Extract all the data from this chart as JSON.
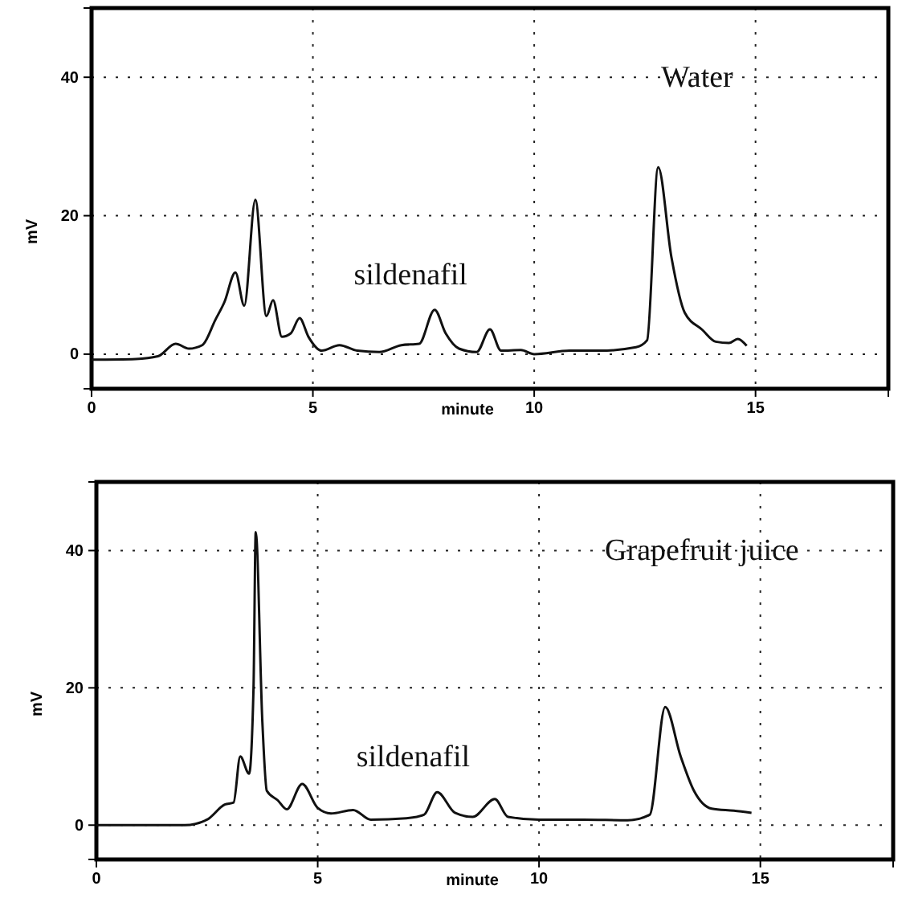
{
  "chart_data": [
    {
      "type": "line",
      "xlabel": "minute",
      "ylabel": "mV",
      "xlim": [
        0,
        18
      ],
      "ylim": [
        -5,
        50
      ],
      "xticks": [
        0,
        5,
        10,
        15
      ],
      "yticks": [
        0,
        20,
        40
      ],
      "grid": true,
      "line_style": "solid",
      "annotations": [
        {
          "text": "sildenafil",
          "x": 7.75,
          "y": 6.4
        },
        "Water"
      ],
      "series": [
        {
          "color": "#111111",
          "x": [
            0,
            1,
            1.5,
            1.9,
            2.2,
            2.5,
            2.8,
            3,
            3.25,
            3.45,
            3.7,
            3.95,
            4.1,
            4.3,
            4.5,
            4.7,
            4.9,
            5.2,
            5.6,
            6,
            6.5,
            7,
            7.4,
            7.75,
            8,
            8.3,
            8.7,
            9,
            9.25,
            9.7,
            10,
            10.8,
            11.5,
            12.3,
            12.55,
            12.8,
            13.1,
            13.4,
            13.8,
            14.1,
            14.4,
            14.6,
            14.8
          ],
          "values": [
            -0.8,
            -0.7,
            -0.3,
            1.5,
            0.8,
            1.3,
            5,
            7.5,
            11.8,
            7,
            22.3,
            5.5,
            7.8,
            2.5,
            3,
            5.2,
            2.5,
            0.5,
            1.3,
            0.5,
            0.3,
            1.3,
            1.5,
            6.4,
            3,
            0.8,
            0.3,
            3.6,
            0.5,
            0.6,
            0,
            0.5,
            0.5,
            1,
            2,
            27,
            14,
            6,
            3.5,
            1.8,
            1.6,
            2.2,
            1.2
          ]
        }
      ]
    },
    {
      "type": "line",
      "xlabel": "minute",
      "ylabel": "mV",
      "xlim": [
        0,
        18
      ],
      "ylim": [
        -5,
        50
      ],
      "xticks": [
        0,
        5,
        10,
        15
      ],
      "yticks": [
        0,
        20,
        40
      ],
      "grid": true,
      "line_style": "solid",
      "annotations": [
        {
          "text": "sildenafil",
          "x": 7.7,
          "y": 4.8
        },
        "Grapefruit juice"
      ],
      "series": [
        {
          "color": "#111111",
          "x": [
            0,
            2,
            2.5,
            2.9,
            3.1,
            3.25,
            3.45,
            3.55,
            3.6,
            3.75,
            3.85,
            4.1,
            4.3,
            4.65,
            5,
            5.3,
            5.8,
            6.2,
            7,
            7.4,
            7.7,
            8.1,
            8.5,
            9,
            9.3,
            10,
            11,
            12,
            12.5,
            12.85,
            13.2,
            13.5,
            13.9,
            14.4,
            14.8
          ],
          "values": [
            0,
            0,
            0.8,
            3,
            3.3,
            10,
            7.5,
            20,
            42.7,
            15,
            5,
            3.6,
            2.3,
            6,
            2.5,
            1.7,
            2.2,
            0.8,
            1,
            1.5,
            4.8,
            1.8,
            1.2,
            3.8,
            1.2,
            0.8,
            0.8,
            0.7,
            1.5,
            17.2,
            10,
            5,
            2.4,
            2.1,
            1.8
          ]
        }
      ]
    }
  ]
}
